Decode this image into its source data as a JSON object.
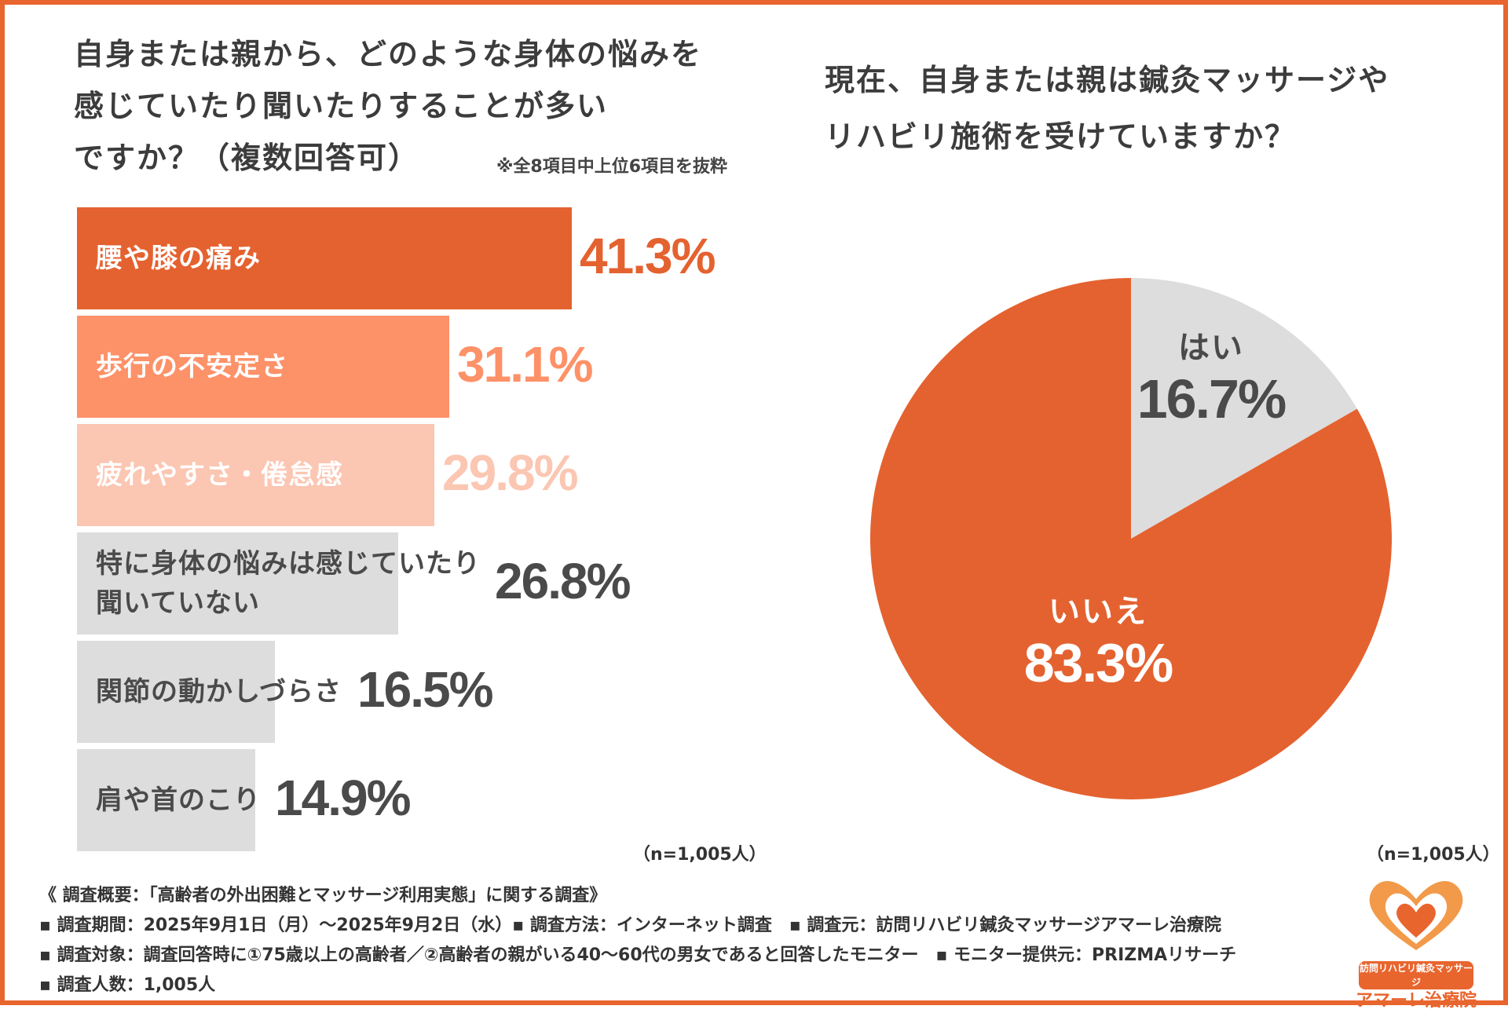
{
  "colors": {
    "border": "#e8652e",
    "bar_colors": [
      "#e4622f",
      "#fd9168",
      "#fbc6b2",
      "#dddddd",
      "#dddddd",
      "#dddddd"
    ],
    "label_colors": [
      "#ffffff",
      "#ffffff",
      "#ffffff",
      "#4a4a4a",
      "#4a4a4a",
      "#4a4a4a"
    ],
    "value_colors": [
      "#e4622f",
      "#fd9168",
      "#fbc6b2",
      "#4a4a4a",
      "#4a4a4a",
      "#4a4a4a"
    ],
    "pie_colors": [
      "#dddddd",
      "#e4622f"
    ],
    "pie_label_colors": [
      "#4a4a4a",
      "#ffffff"
    ]
  },
  "left": {
    "title_line1": "自身または親から、どのような身体の悩みを",
    "title_line2": "感じていたり聞いたりすることが多い",
    "title_line3": "ですか？（複数回答可）",
    "note": "※全8項目中上位6項目を抜粋",
    "n_label": "（n=1,005人）"
  },
  "right": {
    "title_line1": "現在、自身または親は鍼灸マッサージや",
    "title_line2": "リハビリ施術を受けていますか？",
    "n_label": "（n=1,005人）"
  },
  "chart_data": [
    {
      "type": "bar",
      "orientation": "horizontal",
      "title": "自身または親から、どのような身体の悩みを感じていたり聞いたりすることが多いですか？（複数回答可）",
      "categories": [
        "腰や膝の痛み",
        "歩行の不安定さ",
        "疲れやすさ・倦怠感",
        "特に身体の悩みは感じていたり聞いていない",
        "関節の動かしづらさ",
        "肩や首のこり"
      ],
      "category_lines": [
        [
          "腰や膝の痛み"
        ],
        [
          "歩行の不安定さ"
        ],
        [
          "疲れやすさ・倦怠感"
        ],
        [
          "特に身体の悩みは感じていたり",
          "聞いていない"
        ],
        [
          "関節の動かしづらさ"
        ],
        [
          "肩や首のこり"
        ]
      ],
      "values": [
        41.3,
        31.1,
        29.8,
        26.8,
        16.5,
        14.9
      ],
      "value_labels": [
        "41.3%",
        "31.1%",
        "29.8%",
        "26.8%",
        "16.5%",
        "14.9%"
      ],
      "unit": "%",
      "xlim": [
        0,
        50
      ],
      "n": "n=1,005人"
    },
    {
      "type": "pie",
      "title": "現在、自身または親は鍼灸マッサージやリハビリ施術を受けていますか？",
      "labels": [
        "はい",
        "いいえ"
      ],
      "values": [
        16.7,
        83.3
      ],
      "value_labels": [
        "16.7%",
        "83.3%"
      ],
      "n": "n=1,005人"
    }
  ],
  "footer": {
    "line1": "《 調査概要：「高齢者の外出困難とマッサージ利用実態」に関する調査》",
    "line2": "▪ 調査期間：2025年9月1日（月）～2025年9月2日（水）▪ 調査方法：インターネット調査　▪ 調査元：訪問リハビリ鍼灸マッサージアマーレ治療院",
    "line3": "▪ 調査対象：調査回答時に①75歳以上の高齢者／②高齢者の親がいる40～60代の男女であると回答したモニター　▪ モニター提供元：PRIZMAリサーチ",
    "line4": "▪ 調査人数：1,005人"
  },
  "logo": {
    "tagline": "訪問リハビリ鍼灸マッサージ",
    "name": "アマーレ治療院"
  }
}
